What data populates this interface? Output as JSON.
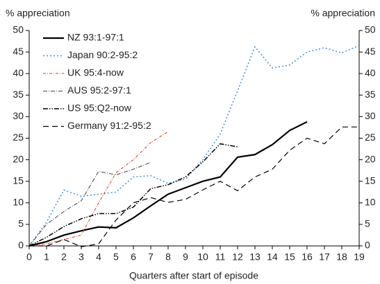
{
  "chart_data": {
    "type": "line",
    "y_label": "% appreciation",
    "y2_label": "% appreciation",
    "x_label": "Quarters after start of episode",
    "x": [
      0,
      1,
      2,
      3,
      4,
      5,
      6,
      7,
      8,
      9,
      10,
      11,
      12,
      13,
      14,
      15,
      16,
      17,
      18,
      19
    ],
    "xlim": [
      0,
      19
    ],
    "xticks": [
      0,
      1,
      2,
      3,
      4,
      5,
      6,
      7,
      8,
      9,
      10,
      11,
      12,
      13,
      14,
      15,
      16,
      17,
      18,
      19
    ],
    "ylim": [
      0,
      50
    ],
    "yticks": [
      0,
      5,
      10,
      15,
      20,
      25,
      30,
      35,
      40,
      45,
      50
    ],
    "y2lim": [
      0,
      50
    ],
    "y2ticks": [
      0,
      5,
      10,
      15,
      20,
      25,
      30,
      35,
      40,
      45,
      50
    ],
    "legend": "top-left",
    "series": [
      {
        "name": "NZ 93:1-97:1",
        "color": "#000000",
        "width": 2.2,
        "dash": "none",
        "values": [
          0,
          1,
          2.5,
          3.5,
          4.4,
          4.2,
          6.5,
          9.3,
          12,
          13.5,
          15,
          16,
          20.6,
          21.2,
          23.5,
          26.8,
          28.8,
          null,
          null,
          null
        ]
      },
      {
        "name": "Japan 90:2-95:2",
        "color": "#3b8fd9",
        "width": 1.5,
        "dash": "2,3",
        "values": [
          0,
          5.5,
          13,
          11.5,
          12,
          12.5,
          16,
          16.3,
          14.5,
          15.5,
          20,
          26,
          36,
          46.2,
          41.3,
          42,
          45,
          46,
          44.8,
          46.5
        ]
      },
      {
        "name": "UK 95:4-now",
        "color": "#e03020",
        "width": 1,
        "dash": "4,2,1,2",
        "values": [
          0,
          0.5,
          1.5,
          2.5,
          10,
          17,
          20,
          24,
          26.5,
          null,
          null,
          null,
          null,
          null,
          null,
          null,
          null,
          null,
          null,
          null
        ]
      },
      {
        "name": "AUS 95:2-97:1",
        "color": "#444444",
        "width": 1,
        "dash": "6,2,1,2",
        "values": [
          0,
          5,
          8,
          10.5,
          17.3,
          16.5,
          17.8,
          19.4,
          null,
          null,
          null,
          null,
          null,
          null,
          null,
          null,
          null,
          null,
          null,
          null
        ]
      },
      {
        "name": "US 95:Q2-now",
        "color": "#000000",
        "width": 1.5,
        "dash": "7,2,1.5,2,1.5,2",
        "values": [
          0,
          2,
          4.5,
          6.3,
          7.5,
          7.5,
          9,
          13.3,
          14.2,
          16,
          19.5,
          23.7,
          23,
          null,
          null,
          null,
          null,
          null,
          null,
          null
        ]
      },
      {
        "name": "Germany 91:2-95:2",
        "color": "#000000",
        "width": 1.2,
        "dash": "8,5",
        "values": [
          0,
          0,
          1.5,
          -0.2,
          0.5,
          6,
          10,
          11.2,
          10.1,
          10.8,
          13,
          15,
          12.8,
          16,
          17.8,
          22.2,
          25,
          23.7,
          27.6,
          27.6
        ]
      }
    ]
  }
}
